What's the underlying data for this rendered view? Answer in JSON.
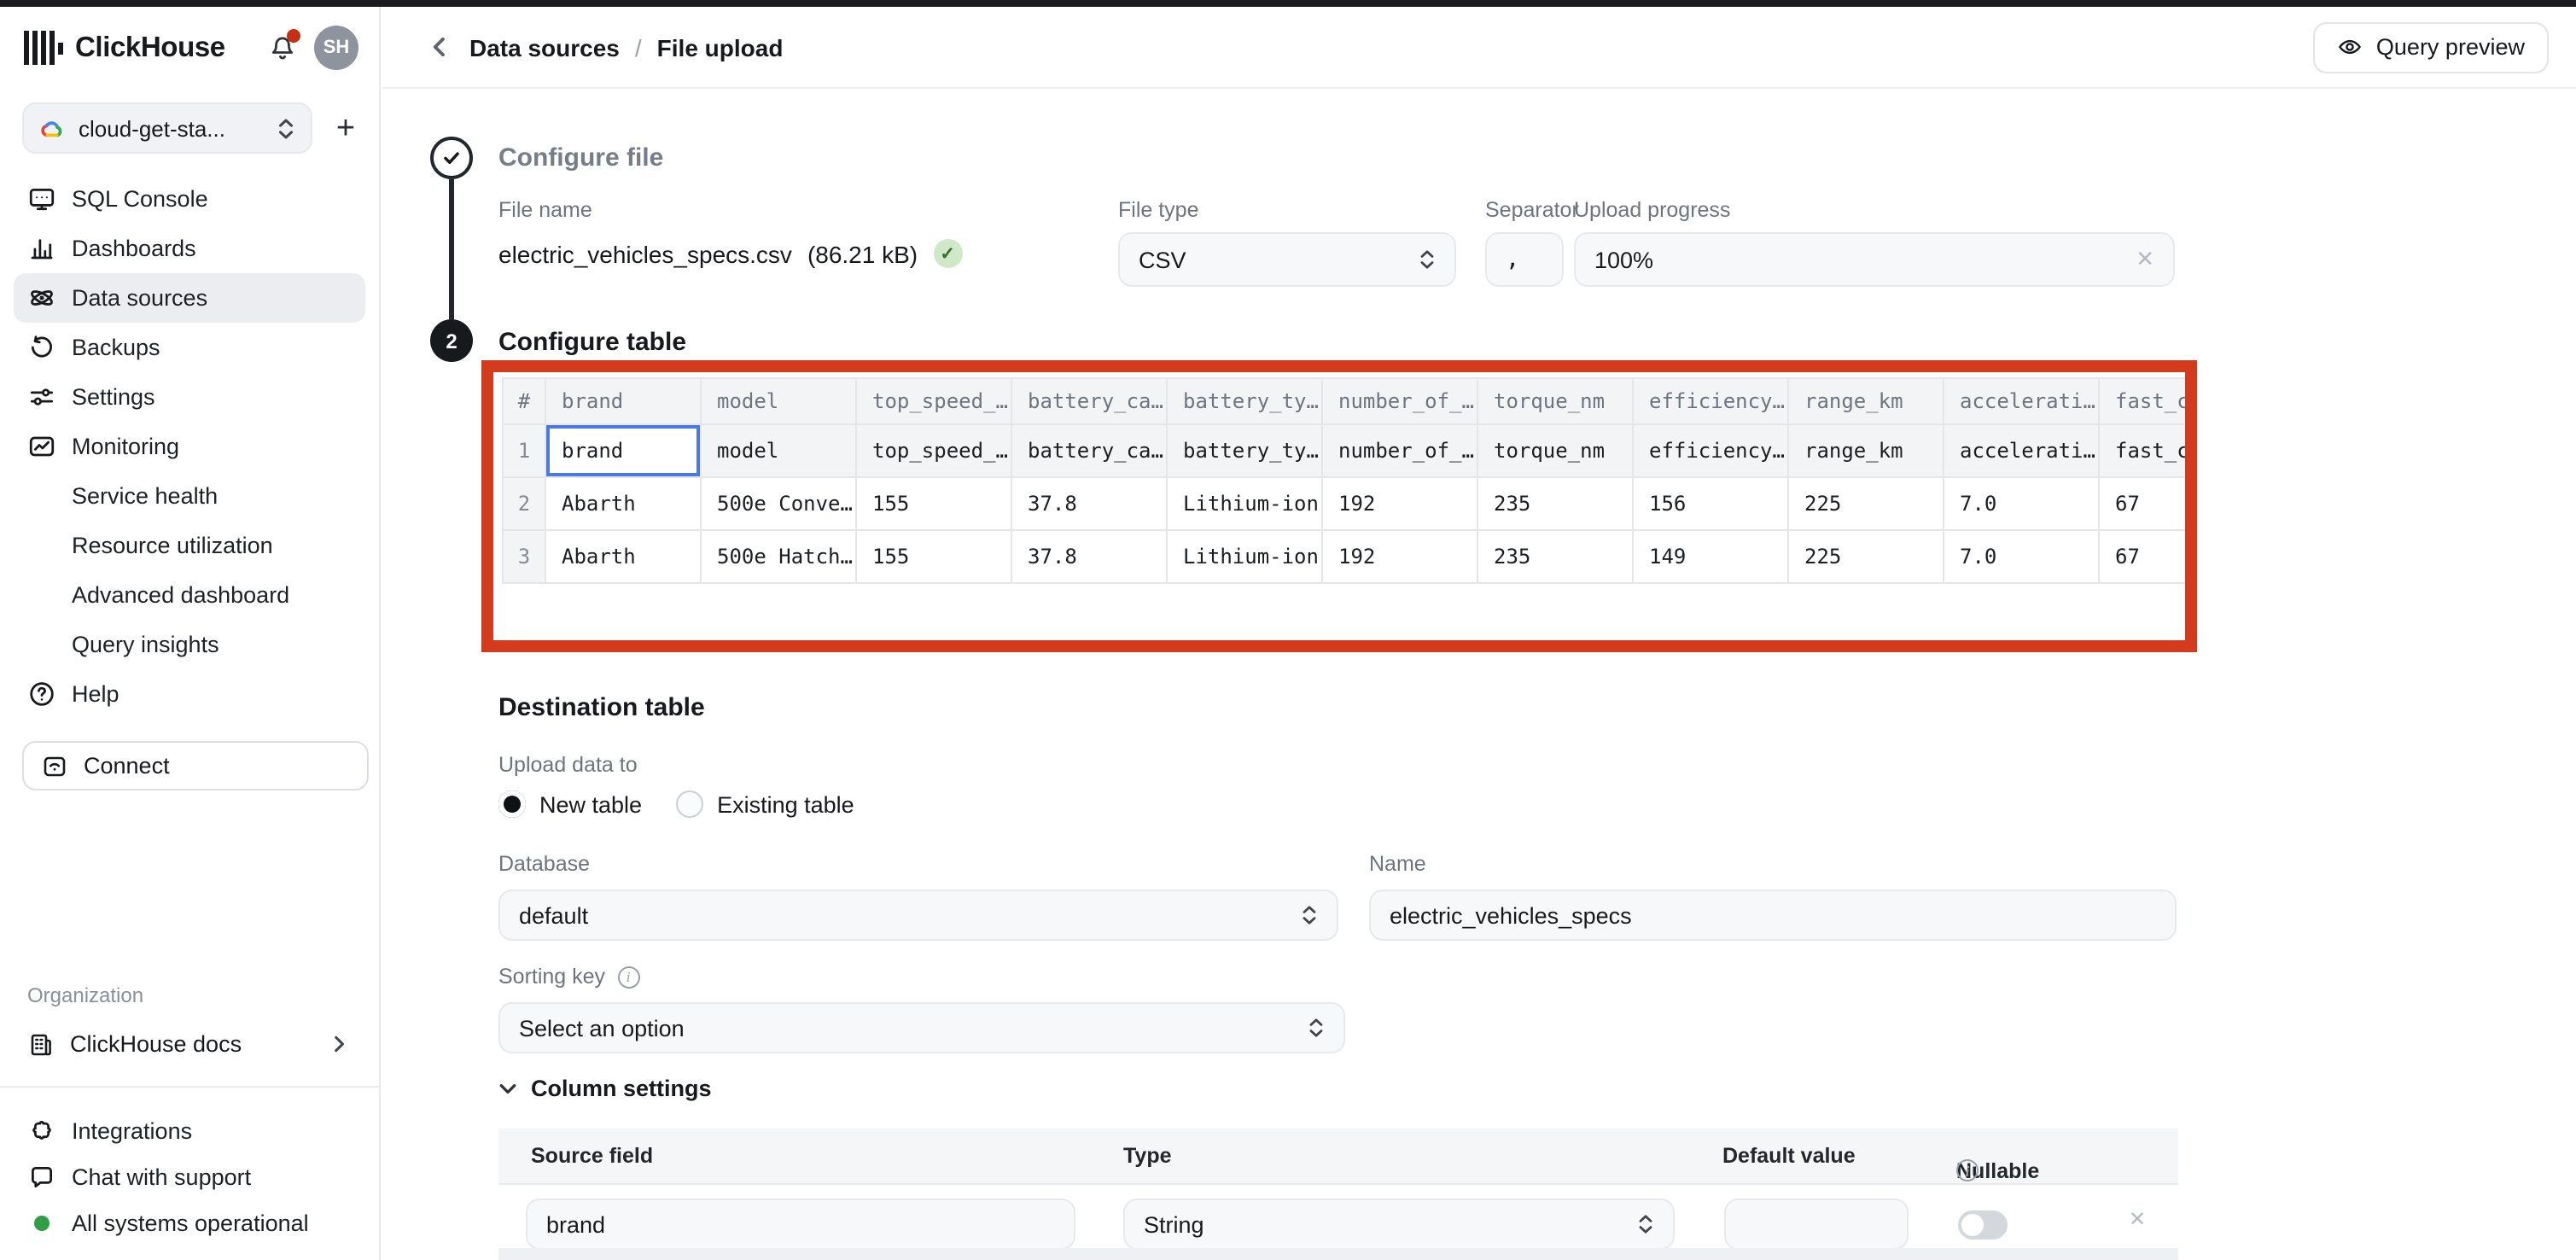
{
  "sidebar": {
    "brand": "ClickHouse",
    "avatar_initials": "SH",
    "service_selector": {
      "value": "cloud-get-sta...",
      "add_button": "+"
    },
    "nav": [
      {
        "label": "SQL Console",
        "icon": "sql-console"
      },
      {
        "label": "Dashboards",
        "icon": "dashboards"
      },
      {
        "label": "Data sources",
        "icon": "data-sources",
        "active": true
      },
      {
        "label": "Backups",
        "icon": "backups"
      },
      {
        "label": "Settings",
        "icon": "settings"
      },
      {
        "label": "Monitoring",
        "icon": "monitoring"
      },
      {
        "label": "Service health",
        "indent": true
      },
      {
        "label": "Resource utilization",
        "indent": true
      },
      {
        "label": "Advanced dashboard",
        "indent": true
      },
      {
        "label": "Query insights",
        "indent": true
      },
      {
        "label": "Help",
        "icon": "help"
      }
    ],
    "connect_label": "Connect",
    "organization_label": "Organization",
    "docs_label": "ClickHouse docs",
    "footer": [
      {
        "label": "Integrations",
        "icon": "integrations"
      },
      {
        "label": "Chat with support",
        "icon": "chat"
      },
      {
        "label": "All systems operational",
        "icon": "status-dot"
      }
    ],
    "status_color": "#2f9e44"
  },
  "header": {
    "breadcrumb": [
      "Data sources",
      "File upload"
    ],
    "separator": "/",
    "query_preview_label": "Query preview"
  },
  "configure_file": {
    "step": "1",
    "title": "Configure file",
    "file_name_label": "File name",
    "file_name": "electric_vehicles_specs.csv",
    "file_size": "(86.21 kB)",
    "file_type_label": "File type",
    "file_type_value": "CSV",
    "separator_label": "Separator",
    "separator_value": ",",
    "upload_progress_label": "Upload progress",
    "upload_progress_value": "100%"
  },
  "configure_table": {
    "step": "2",
    "title": "Configure table",
    "highlight_color": "#d23b1b",
    "columns": [
      "#",
      "brand",
      "model",
      "top_speed_…",
      "battery_ca…",
      "battery_ty…",
      "number_of_…",
      "torque_nm",
      "efficiency…",
      "range_km",
      "accelerati…",
      "fast_cha…"
    ],
    "rows": [
      [
        "1",
        "brand",
        "model",
        "top_speed_…",
        "battery_ca…",
        "battery_ty…",
        "number_of_…",
        "torque_nm",
        "efficiency…",
        "range_km",
        "accelerati…",
        "fast_cha…"
      ],
      [
        "2",
        "Abarth",
        "500e Conve…",
        "155",
        "37.8",
        "Lithium-ion",
        "192",
        "235",
        "156",
        "225",
        "7.0",
        "67"
      ],
      [
        "3",
        "Abarth",
        "500e Hatch…",
        "155",
        "37.8",
        "Lithium-ion",
        "192",
        "235",
        "149",
        "225",
        "7.0",
        "67"
      ]
    ],
    "selected_cell": {
      "row": 0,
      "col": 1
    }
  },
  "destination": {
    "title": "Destination table",
    "upload_data_to_label": "Upload data to",
    "radio_options": [
      "New table",
      "Existing table"
    ],
    "selected_radio": "New table",
    "database_label": "Database",
    "database_value": "default",
    "name_label": "Name",
    "name_value": "electric_vehicles_specs",
    "sorting_key_label": "Sorting key",
    "sorting_key_placeholder": "Select an option",
    "column_settings_label": "Column settings",
    "cs_headers": [
      "Source field",
      "Type",
      "Default value",
      "Nullable"
    ],
    "cs_row": {
      "source_field": "brand",
      "type": "String",
      "default_value": "",
      "nullable": false
    }
  }
}
